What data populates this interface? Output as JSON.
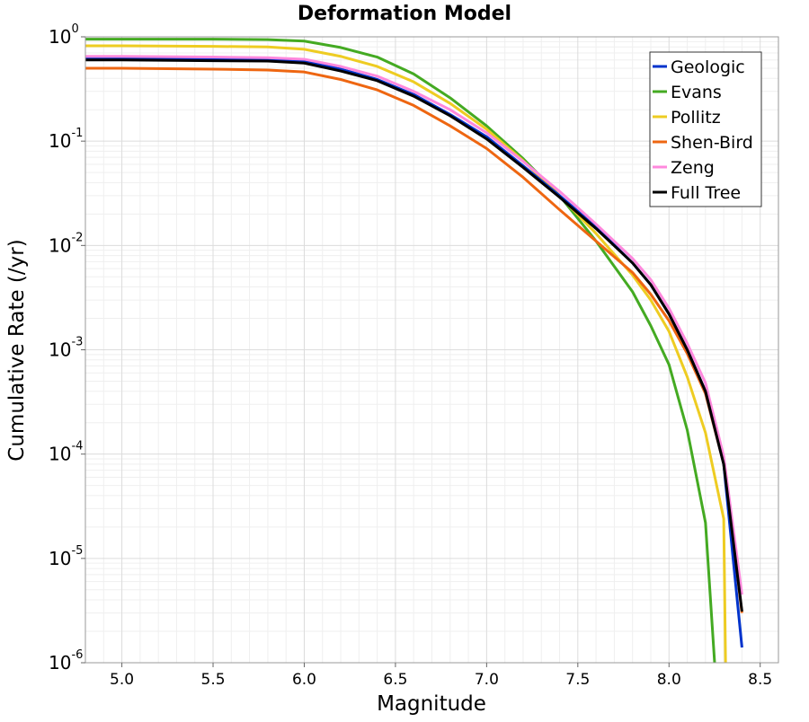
{
  "chart_data": {
    "type": "line",
    "title": "Deformation Model",
    "xlabel": "Magnitude",
    "ylabel": "Cumulative Rate (/yr)",
    "xlim": [
      4.8,
      8.6
    ],
    "ylim": [
      1e-06,
      1
    ],
    "yscale": "log",
    "grid": true,
    "legend_position": "top-right",
    "xticks": [
      5.0,
      5.5,
      6.0,
      6.5,
      7.0,
      7.5,
      8.0,
      8.5
    ],
    "xtick_labels": [
      "5.0",
      "5.5",
      "6.0",
      "6.5",
      "7.0",
      "7.5",
      "8.0",
      "8.5"
    ],
    "yticks": [
      {
        "value": 1e-06,
        "base": "10",
        "exp": "-6"
      },
      {
        "value": 1e-05,
        "base": "10",
        "exp": "-5"
      },
      {
        "value": 0.0001,
        "base": "10",
        "exp": "-4"
      },
      {
        "value": 0.001,
        "base": "10",
        "exp": "-3"
      },
      {
        "value": 0.01,
        "base": "10",
        "exp": "-2"
      },
      {
        "value": 0.1,
        "base": "10",
        "exp": "-1"
      },
      {
        "value": 1,
        "base": "10",
        "exp": "0"
      }
    ],
    "series": [
      {
        "name": "Geologic",
        "color": "#0033cc",
        "x": [
          4.8,
          5.0,
          5.5,
          5.8,
          6.0,
          6.2,
          6.4,
          6.6,
          6.8,
          7.0,
          7.2,
          7.4,
          7.6,
          7.8,
          7.9,
          8.0,
          8.1,
          8.2,
          8.3,
          8.4
        ],
        "y": [
          0.62,
          0.62,
          0.61,
          0.605,
          0.58,
          0.49,
          0.39,
          0.28,
          0.18,
          0.11,
          0.058,
          0.03,
          0.015,
          0.0068,
          0.0042,
          0.0022,
          0.001,
          0.0004,
          8e-05,
          1.4e-06
        ]
      },
      {
        "name": "Evans",
        "color": "#44aa22",
        "x": [
          4.8,
          5.0,
          5.5,
          5.8,
          6.0,
          6.2,
          6.4,
          6.6,
          6.8,
          7.0,
          7.2,
          7.4,
          7.6,
          7.8,
          7.9,
          8.0,
          8.1,
          8.2,
          8.25
        ],
        "y": [
          0.95,
          0.95,
          0.95,
          0.94,
          0.91,
          0.79,
          0.64,
          0.44,
          0.26,
          0.14,
          0.068,
          0.03,
          0.011,
          0.0036,
          0.0017,
          0.00072,
          0.00017,
          2.2e-05,
          1e-06
        ]
      },
      {
        "name": "Pollitz",
        "color": "#eecc22",
        "x": [
          4.8,
          5.0,
          5.5,
          5.8,
          6.0,
          6.2,
          6.4,
          6.6,
          6.8,
          7.0,
          7.2,
          7.4,
          7.6,
          7.8,
          7.9,
          8.0,
          8.1,
          8.2,
          8.3,
          8.31
        ],
        "y": [
          0.82,
          0.82,
          0.81,
          0.8,
          0.76,
          0.65,
          0.52,
          0.37,
          0.23,
          0.13,
          0.065,
          0.03,
          0.013,
          0.0052,
          0.003,
          0.0015,
          0.00055,
          0.00016,
          2.4e-05,
          1e-06
        ]
      },
      {
        "name": "Shen-Bird",
        "color": "#ee6611",
        "x": [
          4.8,
          5.0,
          5.5,
          5.8,
          6.0,
          6.2,
          6.4,
          6.6,
          6.8,
          7.0,
          7.2,
          7.4,
          7.6,
          7.8,
          7.9,
          8.0,
          8.1,
          8.2,
          8.3,
          8.4
        ],
        "y": [
          0.5,
          0.5,
          0.49,
          0.48,
          0.46,
          0.39,
          0.31,
          0.22,
          0.14,
          0.085,
          0.045,
          0.022,
          0.011,
          0.0055,
          0.0034,
          0.0019,
          0.00092,
          0.00038,
          8e-05,
          3e-06
        ]
      },
      {
        "name": "Zeng",
        "color": "#ff88dd",
        "x": [
          4.8,
          5.0,
          5.5,
          5.8,
          6.0,
          6.2,
          6.4,
          6.6,
          6.8,
          7.0,
          7.2,
          7.4,
          7.6,
          7.8,
          7.9,
          8.0,
          8.1,
          8.2,
          8.3,
          8.4
        ],
        "y": [
          0.65,
          0.65,
          0.64,
          0.63,
          0.61,
          0.52,
          0.42,
          0.3,
          0.2,
          0.12,
          0.064,
          0.033,
          0.016,
          0.0075,
          0.0047,
          0.0025,
          0.00115,
          0.00048,
          9.5e-05,
          4.5e-06
        ]
      },
      {
        "name": "Full Tree",
        "color": "#000000",
        "x": [
          4.8,
          5.0,
          5.5,
          5.8,
          6.0,
          6.2,
          6.4,
          6.6,
          6.8,
          7.0,
          7.2,
          7.4,
          7.6,
          7.8,
          7.9,
          8.0,
          8.1,
          8.2,
          8.3,
          8.4
        ],
        "y": [
          0.6,
          0.6,
          0.59,
          0.585,
          0.56,
          0.47,
          0.38,
          0.27,
          0.175,
          0.105,
          0.056,
          0.029,
          0.0145,
          0.0068,
          0.0042,
          0.0022,
          0.001,
          0.0004,
          8e-05,
          3.1e-06
        ]
      }
    ]
  }
}
